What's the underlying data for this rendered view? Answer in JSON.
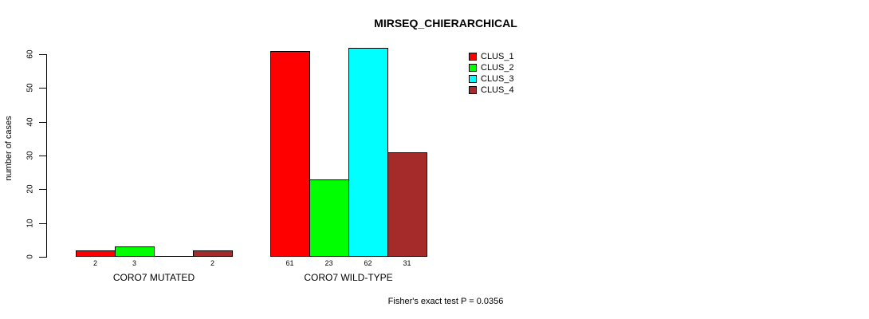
{
  "title": "MIRSEQ_CHIERARCHICAL",
  "footnote": "Fisher's exact test P = 0.0356",
  "chart_data": {
    "type": "bar",
    "title": "MIRSEQ_CHIERARCHICAL",
    "xlabel": "",
    "ylabel": "number of cases",
    "ylim": [
      0,
      60
    ],
    "yticks": [
      0,
      10,
      20,
      30,
      40,
      50,
      60
    ],
    "grid": false,
    "legend_position": "top-right",
    "categories": [
      "CORO7 MUTATED",
      "CORO7 WILD-TYPE"
    ],
    "series": [
      {
        "name": "CLUS_1",
        "color": "#FF0000",
        "values": [
          2,
          61
        ]
      },
      {
        "name": "CLUS_2",
        "color": "#00FF00",
        "values": [
          3,
          23
        ]
      },
      {
        "name": "CLUS_3",
        "color": "#00FFFF",
        "values": [
          0,
          62
        ]
      },
      {
        "name": "CLUS_4",
        "color": "#A52A2A",
        "values": [
          2,
          31
        ]
      }
    ],
    "bar_value_labels": [
      [
        "2",
        "3",
        "",
        "2"
      ],
      [
        "61",
        "23",
        "62",
        "31"
      ]
    ],
    "annotation": "Fisher's exact test P = 0.0356"
  }
}
